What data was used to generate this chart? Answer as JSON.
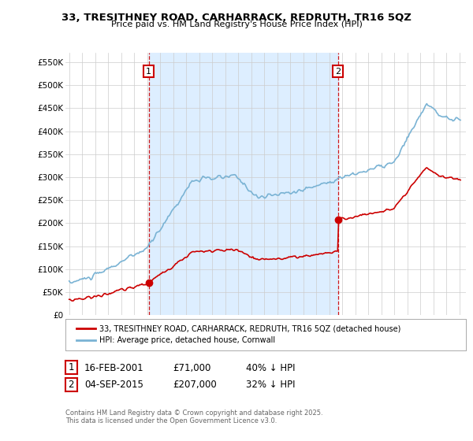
{
  "title": "33, TRESITHNEY ROAD, CARHARRACK, REDRUTH, TR16 5QZ",
  "subtitle": "Price paid vs. HM Land Registry's House Price Index (HPI)",
  "ylabel_ticks": [
    "£0",
    "£50K",
    "£100K",
    "£150K",
    "£200K",
    "£250K",
    "£300K",
    "£350K",
    "£400K",
    "£450K",
    "£500K",
    "£550K"
  ],
  "ytick_values": [
    0,
    50000,
    100000,
    150000,
    200000,
    250000,
    300000,
    350000,
    400000,
    450000,
    500000,
    550000
  ],
  "ylim": [
    0,
    570000
  ],
  "xlim_start": 1994.7,
  "xlim_end": 2025.5,
  "xticks": [
    1995,
    1996,
    1997,
    1998,
    1999,
    2000,
    2001,
    2002,
    2003,
    2004,
    2005,
    2006,
    2007,
    2008,
    2009,
    2010,
    2011,
    2012,
    2013,
    2014,
    2015,
    2016,
    2017,
    2018,
    2019,
    2020,
    2021,
    2022,
    2023,
    2024,
    2025
  ],
  "hpi_color": "#7ab3d4",
  "price_color": "#cc0000",
  "fill_color": "#ddeeff",
  "sale1_year": 2001.12,
  "sale1_price": 71000,
  "sale1_label": "1",
  "sale2_year": 2015.67,
  "sale2_price": 207000,
  "sale2_label": "2",
  "vline_color": "#cc0000",
  "annotation_box_color": "#cc0000",
  "legend_label_price": "33, TRESITHNEY ROAD, CARHARRACK, REDRUTH, TR16 5QZ (detached house)",
  "legend_label_hpi": "HPI: Average price, detached house, Cornwall",
  "table_row1": [
    "1",
    "16-FEB-2001",
    "£71,000",
    "40% ↓ HPI"
  ],
  "table_row2": [
    "2",
    "04-SEP-2015",
    "£207,000",
    "32% ↓ HPI"
  ],
  "footer": "Contains HM Land Registry data © Crown copyright and database right 2025.\nThis data is licensed under the Open Government Licence v3.0.",
  "bg_color": "#ffffff",
  "plot_bg_color": "#ffffff",
  "grid_color": "#cccccc"
}
